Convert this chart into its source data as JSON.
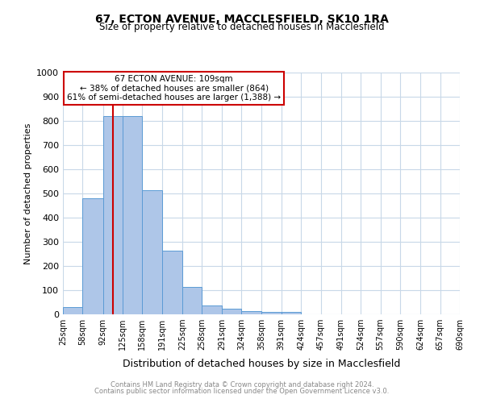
{
  "title1": "67, ECTON AVENUE, MACCLESFIELD, SK10 1RA",
  "title2": "Size of property relative to detached houses in Macclesfield",
  "xlabel": "Distribution of detached houses by size in Macclesfield",
  "ylabel": "Number of detached properties",
  "footer1": "Contains HM Land Registry data © Crown copyright and database right 2024.",
  "footer2": "Contains public sector information licensed under the Open Government Licence v3.0.",
  "bin_edges": [
    25,
    58,
    92,
    125,
    158,
    191,
    225,
    258,
    291,
    324,
    358,
    391,
    424,
    457,
    491,
    524,
    557,
    590,
    624,
    657,
    690
  ],
  "bar_heights": [
    30,
    480,
    820,
    820,
    515,
    265,
    112,
    38,
    22,
    12,
    9,
    9,
    0,
    0,
    0,
    0,
    0,
    0,
    0,
    0
  ],
  "bar_color": "#aec6e8",
  "bar_edge_color": "#5b9bd5",
  "property_size": 109,
  "vline_color": "#cc0000",
  "annotation_text": "67 ECTON AVENUE: 109sqm\n← 38% of detached houses are smaller (864)\n61% of semi-detached houses are larger (1,388) →",
  "annotation_box_color": "#ffffff",
  "annotation_box_edge_color": "#cc0000",
  "ylim": [
    0,
    1000
  ],
  "yticks": [
    0,
    100,
    200,
    300,
    400,
    500,
    600,
    700,
    800,
    900,
    1000
  ],
  "background_color": "#ffffff",
  "grid_color": "#c8d8e8",
  "figsize": [
    6.0,
    5.0
  ],
  "dpi": 100
}
